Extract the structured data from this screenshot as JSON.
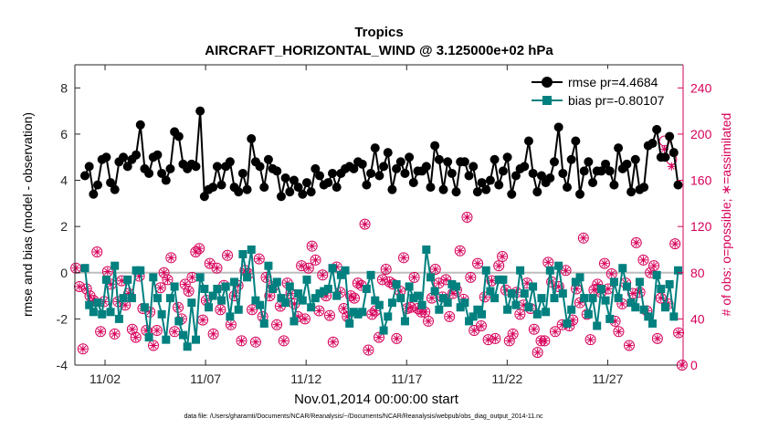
{
  "chart_data": {
    "type": "line",
    "title": "Tropics",
    "subtitle": "AIRCRAFT_HORIZONTAL_WIND @ 3.125000e+02 hPa",
    "xlabel": "Nov.01,2014 00:00:00 start",
    "ylabel_left": "rmse and bias (model - observation)",
    "ylabel_right": "# of obs: o=possible; ∗=assimilated",
    "ylim_left": [
      -4,
      9
    ],
    "ylim_right": [
      0,
      260
    ],
    "yticks_left": [
      "-4",
      "-2",
      "0",
      "2",
      "4",
      "6",
      "8"
    ],
    "yticks_right": [
      "0",
      "40",
      "80",
      "120",
      "160",
      "200",
      "240"
    ],
    "xlim": [
      0.5,
      30.75
    ],
    "xticks": [
      {
        "day": 2,
        "label": "11/02"
      },
      {
        "day": 7,
        "label": "11/07"
      },
      {
        "day": 12,
        "label": "11/12"
      },
      {
        "day": 17,
        "label": "11/17"
      },
      {
        "day": 22,
        "label": "11/22"
      },
      {
        "day": 27,
        "label": "11/27"
      }
    ],
    "legend": {
      "position": "top-right",
      "entries": [
        "rmse pr=4.4684",
        "bias pr=-0.80107"
      ]
    },
    "colors": {
      "rmse": "#000000",
      "bias": "#00807f",
      "obs": "#d6005a",
      "zero_line": "#bdbdbd"
    },
    "series": [
      {
        "name": "rmse",
        "values": [
          4.2,
          4.6,
          3.4,
          3.8,
          4.9,
          5.0,
          3.9,
          3.6,
          4.8,
          5.0,
          4.6,
          4.9,
          5.1,
          6.4,
          4.5,
          4.3,
          5.0,
          5.1,
          4.3,
          4.0,
          4.5,
          6.1,
          5.9,
          4.7,
          4.5,
          4.7,
          4.6,
          7.0,
          3.3,
          3.6,
          3.7,
          4.6,
          3.8,
          4.6,
          4.8,
          3.7,
          3.5,
          4.3,
          3.6,
          5.8,
          4.8,
          4.6,
          3.7,
          4.9,
          4.5,
          4.4,
          3.3,
          4.1,
          3.5,
          4.0,
          3.7,
          3.4,
          3.9,
          3.5,
          4.5,
          4.2,
          3.8,
          3.9,
          4.3,
          3.7,
          4.3,
          4.5,
          4.6,
          4.5,
          4.8,
          4.7,
          3.8,
          4.3,
          5.4,
          4.2,
          4.6,
          5.2,
          3.6,
          4.5,
          4.8,
          4.3,
          5.0,
          3.9,
          4.4,
          4.4,
          4.6,
          3.7,
          5.5,
          4.9,
          3.6,
          4.8,
          4.3,
          3.5,
          4.8,
          4.8,
          4.2,
          4.6,
          3.5,
          3.9,
          3.6,
          4.0,
          4.9,
          3.8,
          4.4,
          5.0,
          3.4,
          4.2,
          4.5,
          4.6,
          5.7,
          4.3,
          3.5,
          4.2,
          3.9,
          4.1,
          4.8,
          6.3,
          4.3,
          3.7,
          4.9,
          5.7,
          3.4,
          4.4,
          4.8,
          3.9,
          4.4,
          4.4,
          4.7,
          4.4,
          3.8,
          5.4,
          4.5,
          4.7,
          3.5,
          4.9,
          3.6,
          3.7,
          5.5,
          5.6,
          6.2,
          5.0,
          5.0,
          5.9,
          5.2,
          3.8
        ]
      },
      {
        "name": "bias",
        "values": [
          0.2,
          -1.4,
          -1.7,
          -1.3,
          -1.8,
          -0.3,
          -1.7,
          0.3,
          -2.0,
          -1.1,
          -0.3,
          -1.1,
          0.1,
          0.1,
          -1.5,
          -2.8,
          -0.2,
          -1.1,
          -1.8,
          -2.9,
          -1.1,
          -0.6,
          -2.1,
          -2.7,
          -3.2,
          -1.3,
          -2.9,
          -0.2,
          -0.7,
          -1.5,
          -1.0,
          -0.7,
          -1.2,
          -0.6,
          -1.9,
          -0.4,
          -1.6,
          0.8,
          -0.2,
          1.0,
          -1.2,
          -1.4,
          -2.2,
          0.3,
          -0.7,
          -0.4,
          -1.1,
          -1.3,
          -0.6,
          -2.1,
          -0.9,
          -1.2,
          -0.3,
          -1.5,
          -1.1,
          -0.9,
          -0.8,
          -0.7,
          0.2,
          -1.0,
          -0.1,
          0.1,
          -2.2,
          -1.7,
          -1.8,
          -1.7,
          -0.7,
          -0.1,
          -1.2,
          -1.4,
          -2.5,
          -1.9,
          -1.3,
          -0.5,
          -1.1,
          -2.1,
          -0.6,
          -1.1,
          -1.0,
          -1.4,
          1.0,
          -0.2,
          -0.8,
          -1.6,
          -1.1,
          -1.3,
          -0.5,
          -0.6,
          -1.5,
          -1.3,
          -2.1,
          -1.9,
          -1.6,
          -1.8,
          0.1,
          -0.8,
          -1.1,
          -0.3,
          -0.3,
          -1.6,
          -0.9,
          -1.4,
          0.1,
          -0.9,
          -1.5,
          -0.6,
          -1.8,
          -1.1,
          -1.7,
          0.1,
          -1.1,
          0.3,
          -0.9,
          -2.2,
          -1.6,
          -0.4,
          -0.2,
          -1.1,
          -1.8,
          -1.1,
          -2.3,
          -0.7,
          -1.2,
          -2.0,
          -0.4,
          -1.1,
          0.2,
          -0.6,
          -1.3,
          -1.5,
          -0.4,
          -1.6,
          -1.9,
          -2.2,
          -0.1,
          -0.7,
          -1.5,
          -0.5,
          -1.9,
          0.1
        ]
      },
      {
        "name": "obs-possible",
        "values": [
          84,
          68,
          14,
          66,
          60,
          56,
          98,
          29,
          55,
          81,
          70,
          27,
          55,
          73,
          52,
          62,
          31,
          24,
          77,
          49,
          30,
          46,
          17,
          30,
          67,
          80,
          74,
          93,
          29,
          50,
          40,
          70,
          64,
          76,
          98,
          101,
          39,
          56,
          88,
          27,
          84,
          48,
          69,
          95,
          35,
          60,
          69,
          21,
          82,
          79,
          48,
          20,
          92,
          42,
          76,
          60,
          68,
          35,
          51,
          21,
          71,
          62,
          53,
          42,
          86,
          40,
          84,
          103,
          91,
          47,
          78,
          60,
          43,
          20,
          85,
          63,
          49,
          42,
          60,
          58,
          71,
          69,
          122,
          13,
          44,
          47,
          24,
          74,
          83,
          72,
          70,
          23,
          64,
          93,
          49,
          50,
          76,
          49,
          46,
          46,
          38,
          58,
          83,
          71,
          59,
          74,
          42,
          62,
          65,
          99,
          57,
          128,
          76,
          30,
          88,
          34,
          59,
          22,
          73,
          23,
          86,
          94,
          65,
          21,
          27,
          63,
          44,
          52,
          71,
          49,
          31,
          11,
          21,
          21,
          89,
          72,
          29,
          68,
          35,
          82,
          34,
          39,
          66,
          54,
          110,
          44,
          22,
          65,
          70,
          63,
          88,
          66,
          79,
          38,
          29,
          53,
          71,
          17,
          62,
          106,
          63,
          91,
          47,
          80,
          86,
          23,
          58,
          194,
          53,
          178,
          105,
          28,
          0
        ]
      },
      {
        "name": "obs-assimilated",
        "values": [
          84,
          68,
          14,
          66,
          60,
          56,
          98,
          29,
          55,
          81,
          70,
          27,
          55,
          73,
          52,
          62,
          31,
          24,
          77,
          49,
          30,
          46,
          17,
          30,
          67,
          80,
          74,
          93,
          29,
          50,
          40,
          70,
          64,
          76,
          98,
          101,
          39,
          56,
          88,
          27,
          84,
          48,
          69,
          95,
          35,
          60,
          69,
          21,
          82,
          79,
          48,
          20,
          92,
          42,
          76,
          60,
          68,
          35,
          51,
          21,
          71,
          62,
          53,
          42,
          86,
          40,
          84,
          103,
          91,
          47,
          78,
          60,
          43,
          20,
          85,
          63,
          49,
          42,
          60,
          58,
          71,
          69,
          122,
          13,
          44,
          47,
          24,
          74,
          83,
          72,
          70,
          23,
          64,
          93,
          49,
          50,
          76,
          49,
          46,
          46,
          38,
          58,
          83,
          71,
          59,
          74,
          42,
          62,
          65,
          99,
          57,
          128,
          76,
          30,
          88,
          34,
          59,
          22,
          73,
          23,
          86,
          94,
          65,
          21,
          27,
          63,
          44,
          52,
          71,
          49,
          31,
          11,
          21,
          21,
          89,
          72,
          29,
          68,
          35,
          82,
          34,
          39,
          66,
          54,
          110,
          44,
          22,
          65,
          70,
          63,
          88,
          66,
          79,
          38,
          29,
          53,
          71,
          17,
          62,
          106,
          63,
          91,
          47,
          80,
          86,
          23,
          58,
          187,
          53,
          172,
          105,
          28,
          0
        ]
      }
    ]
  },
  "footer": "data file: /Users/gharamti/Documents/NCAR/Reanalysis/~/Documents/NCAR/Reanalysis/webpub/obs_diag_output_2014-11.nc"
}
